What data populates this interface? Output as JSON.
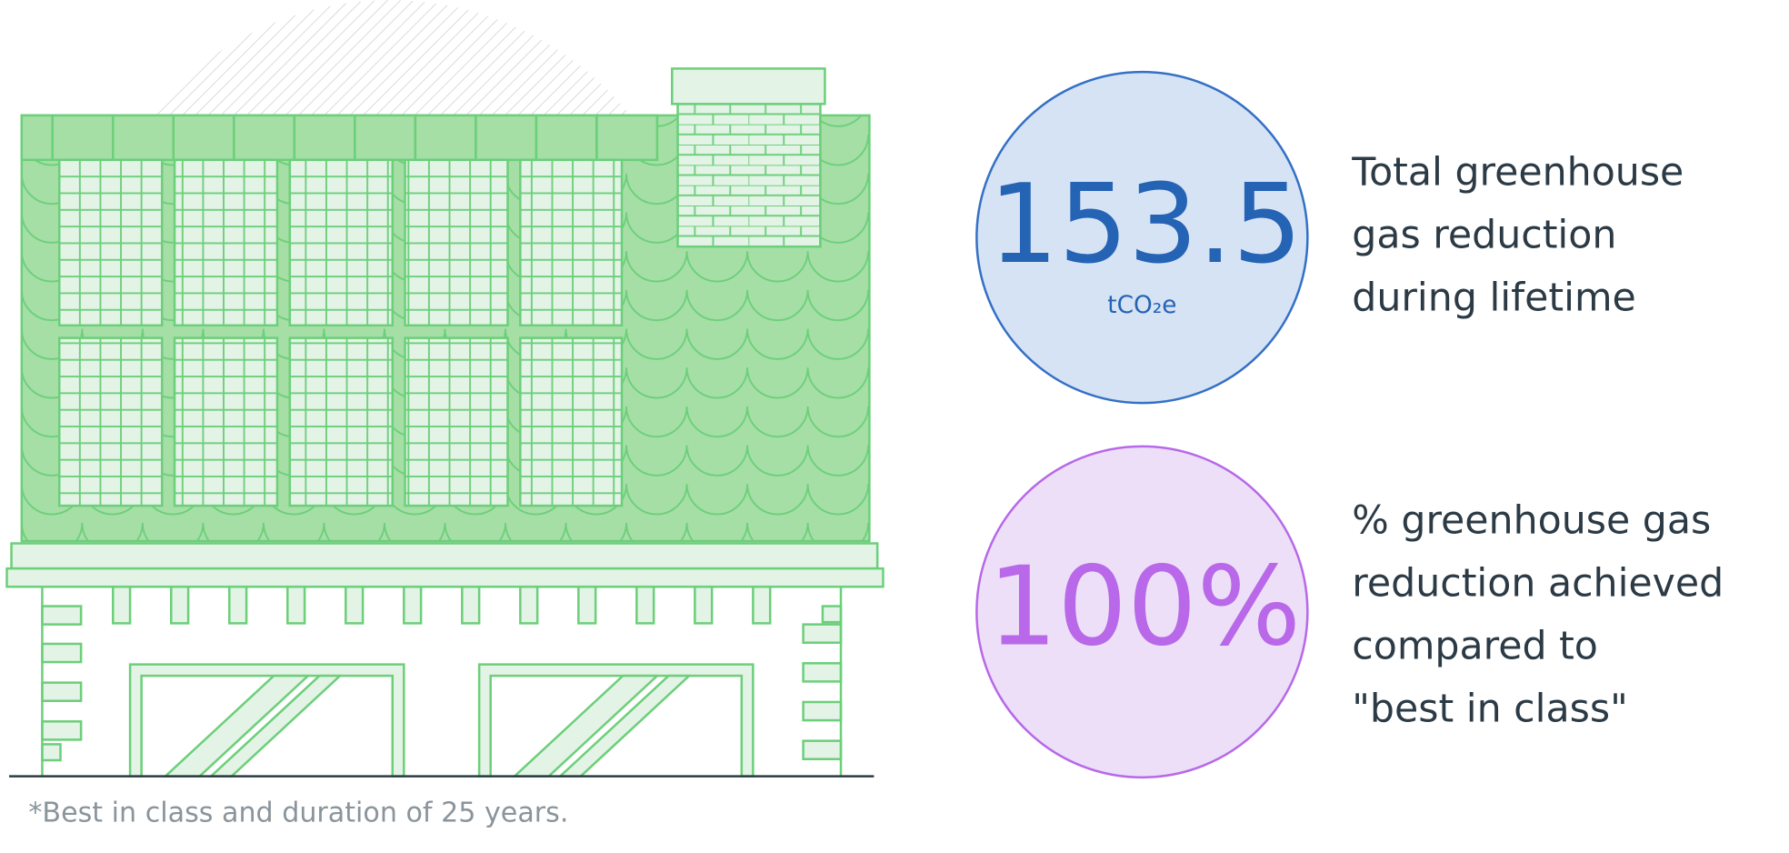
{
  "stats": [
    {
      "value": "153.5",
      "unit": "tCO₂e",
      "description": [
        "Total greenhouse",
        "gas reduction",
        "during lifetime"
      ]
    },
    {
      "value": "100%",
      "description": [
        "% greenhouse gas",
        "reduction achieved",
        "compared to",
        "\"best in class\""
      ]
    }
  ],
  "footnote": "*Best in class and duration of 25 years."
}
